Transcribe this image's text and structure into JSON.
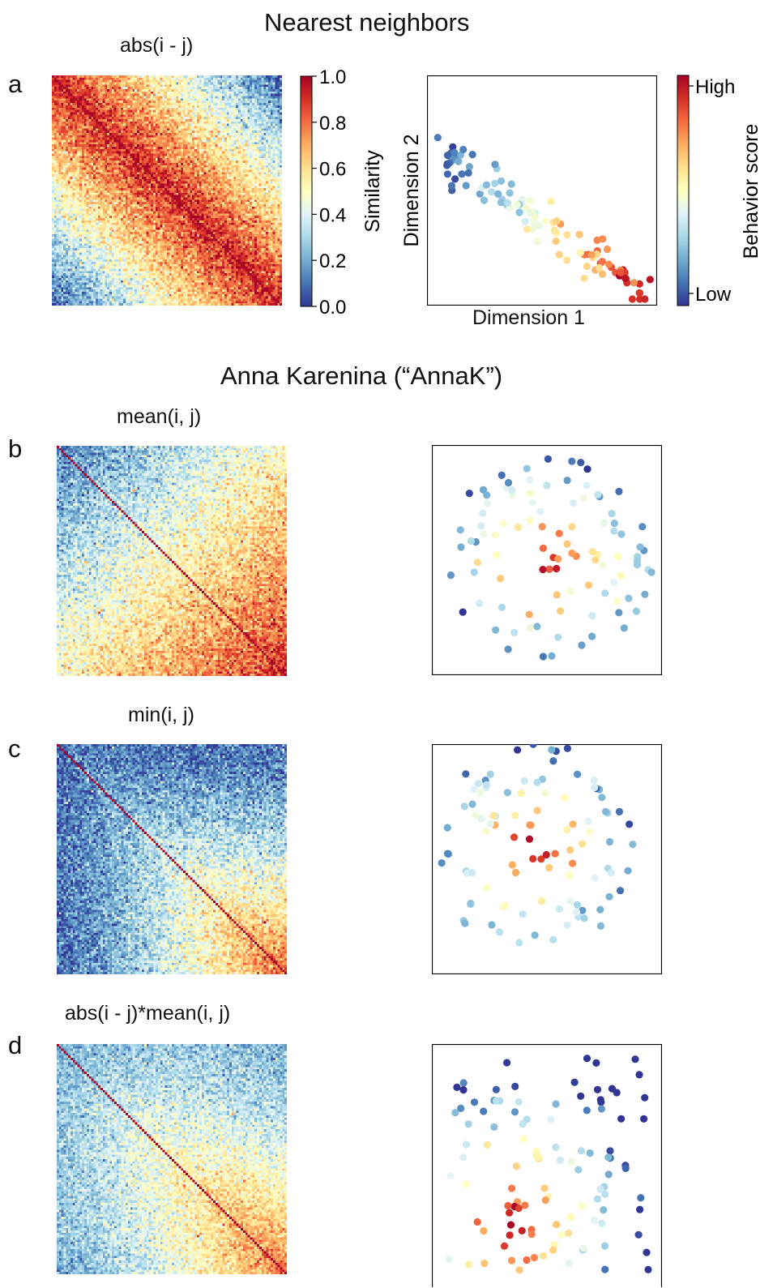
{
  "sections": {
    "top_title": "Nearest neighbors",
    "bottom_title": "Anna Karenina (“AnnaK”)"
  },
  "panels": [
    {
      "letter": "a",
      "title": "abs(i - j)"
    },
    {
      "letter": "b",
      "title": "mean(i, j)"
    },
    {
      "letter": "c",
      "title": "min(i, j)"
    },
    {
      "letter": "d",
      "title": "abs(i - j)*mean(i, j)"
    }
  ],
  "similarity_colorbar": {
    "label": "Similarity",
    "ticks": [
      "1.0",
      "0.8",
      "0.6",
      "0.4",
      "0.2",
      "0.0"
    ],
    "range": [
      0,
      1
    ]
  },
  "behavior_colorbar": {
    "label": "Behavior score",
    "high": "High",
    "low": "Low"
  },
  "scatter_axes": {
    "xlabel": "Dimension 1",
    "ylabel": "Dimension 2"
  },
  "colors": {
    "low": "#313695",
    "mid": "#ffffbf",
    "high": "#a50026"
  },
  "chart_data": [
    {
      "type": "heatmap",
      "panel": "a",
      "title": "abs(i - j)",
      "matrix_size": 100,
      "pattern": "similarity = 1 - abs(i - j)/(n-1); highest along diagonal",
      "range": [
        0,
        1
      ]
    },
    {
      "type": "scatter",
      "panel": "a",
      "xlabel": "Dimension 1",
      "ylabel": "Dimension 2",
      "pattern": "points along a descending diagonal band; behavior score increases from upper-left (low) to lower-right (high)"
    },
    {
      "type": "heatmap",
      "panel": "b",
      "title": "mean(i, j)",
      "matrix_size": 100,
      "pattern": "similarity = mean(i, j)/(n-1); low at top-left, high at bottom-right",
      "range": [
        0,
        1
      ]
    },
    {
      "type": "scatter",
      "panel": "b",
      "pattern": "radial cloud; high behavior scores clustered in center, low scores on periphery"
    },
    {
      "type": "heatmap",
      "panel": "c",
      "title": "min(i, j)",
      "matrix_size": 100,
      "pattern": "similarity = min(i, j)/(n-1); mostly low, increasing toward bottom-right",
      "range": [
        0,
        1
      ]
    },
    {
      "type": "scatter",
      "panel": "c",
      "pattern": "radial cloud; high scores in center, low scores on periphery"
    },
    {
      "type": "heatmap",
      "panel": "d",
      "title": "abs(i - j)*mean(i, j)",
      "matrix_size": 100,
      "pattern": "similarity combining nearest-neighbor and mean structure",
      "range": [
        0,
        1
      ]
    },
    {
      "type": "scatter",
      "panel": "d",
      "pattern": "high scores clustered at lower-left, lower scores toward top and sides"
    }
  ]
}
